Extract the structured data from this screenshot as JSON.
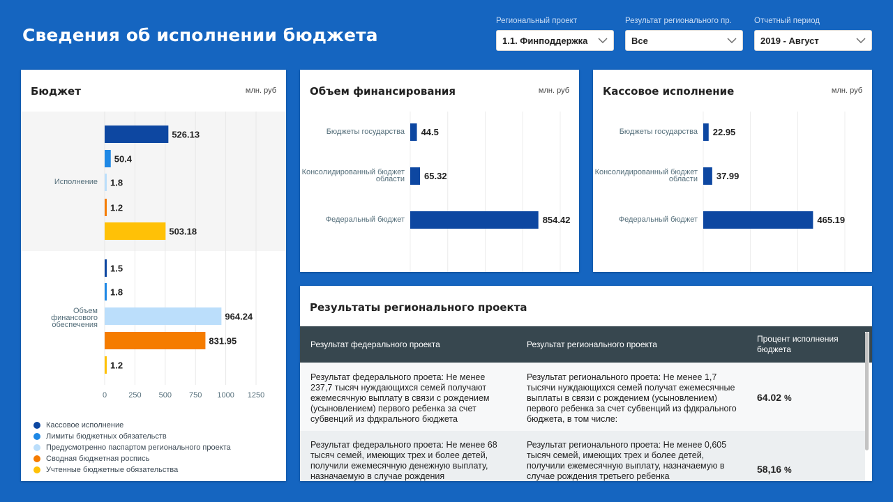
{
  "header": {
    "title": "Сведения об исполнении бюджета"
  },
  "filters": [
    {
      "label": "Региональный проект",
      "value": "1.1. Финподдержка"
    },
    {
      "label": "Результат регионального пр.",
      "value": "Все"
    },
    {
      "label": "Отчетный период",
      "value": "2019 - Август"
    }
  ],
  "colors": {
    "background": "#1565c0",
    "kassovoe": "#0d47a1",
    "limity": "#1e88e5",
    "pasport": "#bbdefb",
    "rospis": "#f57c00",
    "uchtennye": "#ffc107",
    "table_header": "#37474f"
  },
  "budget_card": {
    "title": "Бюджет",
    "unit": "млн. руб",
    "legend": [
      {
        "label": "Кассовое исполнение",
        "color": "#0d47a1"
      },
      {
        "label": "Лимиты бюджетных обязательств",
        "color": "#1e88e5"
      },
      {
        "label": "Предусмотренно паспартом регионального проекта",
        "color": "#bbdefb"
      },
      {
        "label": "Сводная бюджетная роспись",
        "color": "#f57c00"
      },
      {
        "label": "Учтенные бюджетные обязательства",
        "color": "#ffc107"
      }
    ]
  },
  "funding_card": {
    "title": "Объем финансирования",
    "unit": "млн. руб"
  },
  "cash_card": {
    "title": "Кассовое исполнение",
    "unit": "млн. руб"
  },
  "results_card": {
    "title": "Результаты регионального проекта",
    "columns": [
      "Результат федерального проекта",
      "Результат регионального проекта",
      "Процент исполнения бюджета"
    ],
    "rows": [
      {
        "federal": "Результат федерального проета: Не менее 237,7 тысяч нуждающихся семей получают ежемесячную выплату в связи с рождением (усыновлением) первого ребенка за счет субвенций из фдкрального бюджета",
        "regional": "Результат регионального проета: Не менее 1,7 тысячи нуждающихся семей получат ежемесячные выплаты в связи с рождением (усыновлением) первого ребенка за счет субвенций из фдкрального бюджета, в том числе:",
        "percent": "64.02",
        "percent_unit": "%"
      },
      {
        "federal": "Результат федерального проета: Не менее 68 тысяч семей, имеющих трех и более детей, получили ежемесячную денежную выплату, назначаемую в случае рождения",
        "regional": "Результат регионального проета: Не менее 0,605 тысяч семей, имеющих трех и более детей, получили ежемесячную выплату, назначаемую в случае рождения третьего ребенка",
        "percent": "58,16",
        "percent_unit": "%"
      }
    ]
  },
  "chart_data": [
    {
      "type": "bar",
      "orientation": "horizontal",
      "title": "Бюджет",
      "unit": "млн. руб",
      "categories": [
        "Исполнение",
        "Объем финансового обеспечения"
      ],
      "series": [
        {
          "name": "Кассовое исполнение",
          "color": "#0d47a1",
          "values": [
            526.13,
            1.5
          ]
        },
        {
          "name": "Лимиты бюджетных обязательств",
          "color": "#1e88e5",
          "values": [
            50.4,
            1.8
          ]
        },
        {
          "name": "Предусмотренно паспартом регионального проекта",
          "color": "#bbdefb",
          "values": [
            1.8,
            964.24
          ]
        },
        {
          "name": "Сводная бюджетная роспись",
          "color": "#f57c00",
          "values": [
            1.2,
            831.95
          ]
        },
        {
          "name": "Учтенные бюджетные обязательства",
          "color": "#ffc107",
          "values": [
            503.18,
            1.2
          ]
        }
      ],
      "xticks": [
        0,
        250,
        500,
        750,
        1000,
        1250
      ],
      "xlim": [
        0,
        1250
      ],
      "grid": true,
      "legend": "bottom"
    },
    {
      "type": "bar",
      "orientation": "horizontal",
      "title": "Объем финансирования",
      "unit": "млн. руб",
      "categories": [
        "Бюджеты государства",
        "Консолидированный бюджет области",
        "Федеральный бюджет"
      ],
      "values": [
        44.5,
        65.32,
        854.42
      ],
      "xticks": [
        0,
        250,
        500,
        750,
        1000
      ],
      "xlim": [
        0,
        1000
      ],
      "grid": true,
      "color": "#0d47a1"
    },
    {
      "type": "bar",
      "orientation": "horizontal",
      "title": "Кассовое исполнение",
      "unit": "млн. руб",
      "categories": [
        "Бюджеты государства",
        "Консолидированный бюджет области",
        "Федеральный бюджет"
      ],
      "values": [
        22.95,
        37.99,
        465.19
      ],
      "xticks": [
        0,
        200,
        400,
        600
      ],
      "xlim": [
        0,
        620
      ],
      "grid": true,
      "color": "#0d47a1"
    }
  ]
}
